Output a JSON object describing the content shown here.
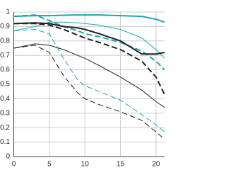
{
  "chart_data": {
    "type": "line",
    "x": [
      0,
      3,
      5,
      7,
      9,
      10,
      12,
      15,
      18,
      20,
      21.2
    ],
    "xlim": [
      0,
      21.2
    ],
    "xticks": [
      0,
      5,
      10,
      15,
      20
    ],
    "ylim": [
      0,
      1
    ],
    "yticks": [
      0,
      0.1,
      0.2,
      0.3,
      0.4,
      0.5,
      0.6,
      0.7,
      0.8,
      0.9,
      1
    ],
    "grid": true,
    "series": [
      {
        "color": "#1aa7b8",
        "dash": false,
        "width": 2,
        "values": [
          0.97,
          0.975,
          0.975,
          0.978,
          0.98,
          0.98,
          0.98,
          0.975,
          0.97,
          0.95,
          0.93
        ]
      },
      {
        "color": "#1aa7b8",
        "dash": true,
        "width": 2,
        "values": [
          0.97,
          0.98,
          0.94,
          0.9,
          0.87,
          0.85,
          0.83,
          0.79,
          0.73,
          0.66,
          0.6
        ]
      },
      {
        "color": "#1aa7b8",
        "dash": false,
        "width": 1,
        "values": [
          0.87,
          0.9,
          0.93,
          0.93,
          0.925,
          0.92,
          0.91,
          0.88,
          0.82,
          0.74,
          0.68
        ]
      },
      {
        "color": "#1aa7b8",
        "dash": true,
        "width": 1,
        "values": [
          0.87,
          0.88,
          0.85,
          0.68,
          0.53,
          0.49,
          0.45,
          0.39,
          0.29,
          0.22,
          0.17
        ]
      },
      {
        "color": "#222222",
        "dash": false,
        "width": 2,
        "values": [
          0.92,
          0.925,
          0.92,
          0.9,
          0.89,
          0.88,
          0.85,
          0.8,
          0.71,
          0.71,
          0.72
        ]
      },
      {
        "color": "#222222",
        "dash": true,
        "width": 2,
        "values": [
          0.92,
          0.92,
          0.91,
          0.88,
          0.84,
          0.82,
          0.79,
          0.74,
          0.66,
          0.55,
          0.43
        ]
      },
      {
        "color": "#222222",
        "dash": false,
        "width": 1,
        "values": [
          0.75,
          0.78,
          0.77,
          0.74,
          0.7,
          0.68,
          0.63,
          0.55,
          0.46,
          0.38,
          0.34
        ]
      },
      {
        "color": "#222222",
        "dash": true,
        "width": 1,
        "values": [
          0.75,
          0.77,
          0.72,
          0.56,
          0.44,
          0.4,
          0.36,
          0.31,
          0.25,
          0.17,
          0.12
        ]
      }
    ]
  }
}
